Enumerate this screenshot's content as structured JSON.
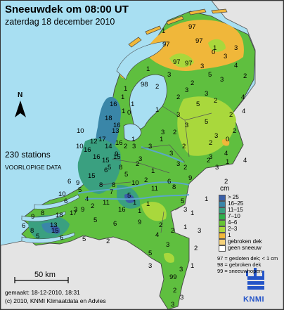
{
  "title": "Sneeuwdek om 08:00 UT",
  "subtitle": "zaterdag 18 december 2010",
  "stations_count": "230 stations",
  "preliminary": "VOORLOPIGE DATA",
  "made": "gemaakt: 18-12-2010, 18:31",
  "copyright": "(c) 2010, KNMI Klimaatdata en Advies",
  "scale": {
    "label": "50 km"
  },
  "north_label": "N",
  "logo_text": "KNMI",
  "legend": {
    "unit": "cm",
    "classes": [
      {
        "label": "> 25",
        "color": "#3a5fa8"
      },
      {
        "label": "16–25",
        "color": "#3a86a8"
      },
      {
        "label": "11–15",
        "color": "#3aa080"
      },
      {
        "label": "7–10",
        "color": "#30b04a"
      },
      {
        "label": "4–6",
        "color": "#66c435"
      },
      {
        "label": "2–3",
        "color": "#a9d83c"
      },
      {
        "label": "1",
        "color": "#f0b73a"
      },
      {
        "label": "gebroken dek",
        "color": "#f6d27a"
      },
      {
        "label": "geen sneeuw",
        "color": "#ffffff"
      }
    ],
    "codes": [
      "97 = gesloten dek; < 1 cm",
      "98 = gebroken dek",
      "99 = sneeuwhopen"
    ]
  },
  "colors": {
    "sea": "#a8dff2",
    "land_outside": "#e4e4e4",
    "lake": "#a8dff2",
    "border": "#555555",
    "logo": "#2454c7"
  },
  "stations": [
    {
      "v": "1"
    },
    {
      "v": "97"
    },
    {
      "v": "97"
    },
    {
      "v": "97"
    },
    {
      "v": "1"
    },
    {
      "v": "0"
    },
    {
      "v": "3"
    },
    {
      "v": "3"
    },
    {
      "v": "4"
    },
    {
      "v": "3"
    },
    {
      "v": "97"
    },
    {
      "v": "97"
    },
    {
      "v": "1"
    },
    {
      "v": "3"
    },
    {
      "v": "5"
    },
    {
      "v": "98"
    },
    {
      "v": "1"
    },
    {
      "v": "1"
    },
    {
      "v": "1"
    },
    {
      "v": "0"
    },
    {
      "v": "3"
    },
    {
      "v": "2"
    },
    {
      "v": "3"
    },
    {
      "v": "5"
    },
    {
      "v": "1"
    },
    {
      "v": "3"
    },
    {
      "v": "3"
    },
    {
      "v": "5"
    },
    {
      "v": "1"
    },
    {
      "v": "16"
    },
    {
      "v": "18"
    },
    {
      "v": "16"
    },
    {
      "v": "16"
    },
    {
      "v": "13"
    },
    {
      "v": "14"
    },
    {
      "v": "15"
    },
    {
      "v": "17"
    },
    {
      "v": "16"
    },
    {
      "v": "16"
    },
    {
      "v": "15"
    },
    {
      "v": "10"
    },
    {
      "v": "12"
    },
    {
      "v": "10"
    },
    {
      "v": "15"
    },
    {
      "v": "6"
    },
    {
      "v": "9"
    },
    {
      "v": "1"
    },
    {
      "v": "3"
    },
    {
      "v": "2"
    },
    {
      "v": "3"
    },
    {
      "v": "3"
    },
    {
      "v": "1"
    },
    {
      "v": "2"
    },
    {
      "v": "3"
    },
    {
      "v": "3"
    },
    {
      "v": "0"
    },
    {
      "v": "4"
    },
    {
      "v": "9"
    },
    {
      "v": "5"
    },
    {
      "v": "8"
    },
    {
      "v": "5"
    },
    {
      "v": "2"
    },
    {
      "v": "1"
    },
    {
      "v": "3"
    },
    {
      "v": "2"
    },
    {
      "v": "2"
    },
    {
      "v": "2"
    },
    {
      "v": "11"
    },
    {
      "v": "10"
    },
    {
      "v": "7"
    },
    {
      "v": "6"
    },
    {
      "v": "8"
    },
    {
      "v": "6"
    },
    {
      "v": "4"
    },
    {
      "v": "3"
    },
    {
      "v": "3"
    },
    {
      "v": "2"
    },
    {
      "v": "8"
    },
    {
      "v": "9"
    },
    {
      "v": "6"
    },
    {
      "v": "8"
    },
    {
      "v": "13"
    },
    {
      "v": "6"
    },
    {
      "v": "5"
    },
    {
      "v": "3"
    },
    {
      "v": "2"
    },
    {
      "v": "1"
    },
    {
      "v": "9"
    },
    {
      "v": "1"
    },
    {
      "v": "3"
    },
    {
      "v": "6"
    },
    {
      "v": "2"
    },
    {
      "v": "4"
    },
    {
      "v": "1"
    },
    {
      "v": "99"
    },
    {
      "v": "5"
    },
    {
      "v": "3"
    },
    {
      "v": "3"
    },
    {
      "v": "3"
    },
    {
      "v": "2"
    },
    {
      "v": "15"
    },
    {
      "v": "18"
    },
    {
      "v": "17"
    },
    {
      "v": "9"
    },
    {
      "v": "5"
    },
    {
      "v": "5"
    },
    {
      "v": "4"
    },
    {
      "v": "8"
    },
    {
      "v": "5"
    },
    {
      "v": "5"
    },
    {
      "v": "1"
    },
    {
      "v": "10"
    },
    {
      "v": "16"
    },
    {
      "v": "11"
    },
    {
      "v": "6"
    },
    {
      "v": "9"
    },
    {
      "v": "5"
    },
    {
      "v": "8"
    },
    {
      "v": "3"
    },
    {
      "v": "2"
    },
    {
      "v": "1"
    },
    {
      "v": "3"
    },
    {
      "v": "3"
    },
    {
      "v": "2"
    },
    {
      "v": "1"
    },
    {
      "v": "2"
    },
    {
      "v": "2"
    },
    {
      "v": "2"
    },
    {
      "v": "4"
    },
    {
      "v": "2"
    },
    {
      "v": "3"
    },
    {
      "v": "2"
    },
    {
      "v": "2"
    },
    {
      "v": "4"
    },
    {
      "v": "1"
    },
    {
      "v": "2"
    },
    {
      "v": "1"
    },
    {
      "v": "3"
    },
    {
      "v": "2"
    },
    {
      "v": "2"
    }
  ]
}
